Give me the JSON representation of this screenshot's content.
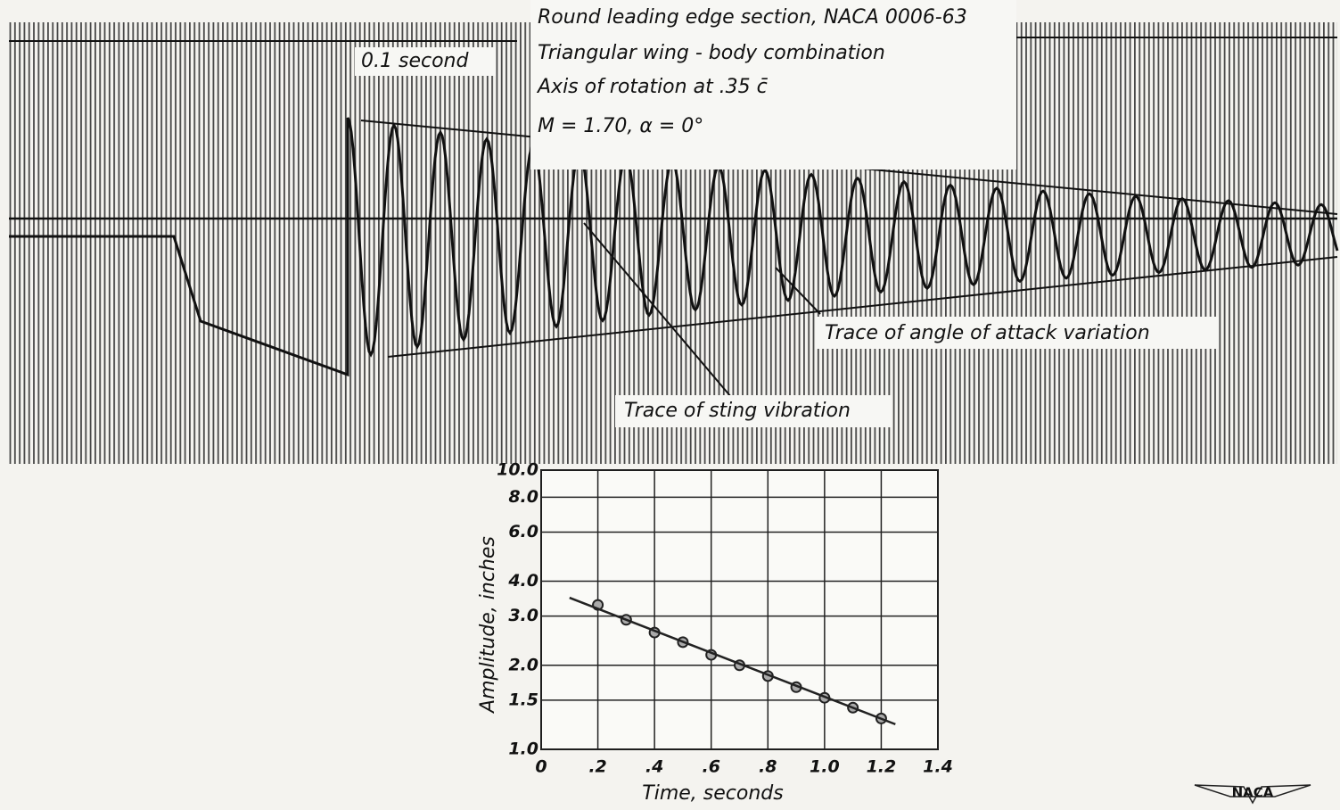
{
  "record": {
    "labels": [
      "Round leading edge section, NACA 0006-63",
      "Triangular wing - body combination",
      "Axis of rotation at .35 c̄",
      "M = 1.70,  α = 0°"
    ],
    "time_mark": "0.1 second",
    "angle_trace": "Trace of angle of attack variation",
    "sting_trace": "Trace of sting vibration"
  },
  "logo": "NACA",
  "chart_data": {
    "type": "scatter",
    "x_label": "Time, seconds",
    "y_label": "Amplitude, inches",
    "xlim": [
      0,
      1.4
    ],
    "ylim": [
      1,
      10
    ],
    "log_y": true,
    "grid": true,
    "xticks": [
      0,
      {
        "value": 0.2,
        "label": ".2"
      },
      {
        "value": 0.4,
        "label": ".4"
      },
      {
        "value": 0.6,
        "label": ".6"
      },
      {
        "value": 0.8,
        "label": ".8"
      },
      {
        "value": 1.0,
        "label": "1.0"
      },
      {
        "value": 1.2,
        "label": "1.2"
      },
      {
        "value": 1.4,
        "label": "1.4"
      }
    ],
    "yticks": [
      {
        "value": 1,
        "label": "1.0"
      },
      {
        "value": 1.5,
        "label": "1.5"
      },
      {
        "value": 2,
        "label": "2.0"
      },
      {
        "value": 3,
        "label": "3.0"
      },
      {
        "value": 4,
        "label": "4.0"
      },
      {
        "value": 6,
        "label": "6.0"
      },
      {
        "value": 8,
        "label": "8.0"
      },
      {
        "value": 10,
        "label": "10.0"
      }
    ],
    "series": [
      {
        "color": "#222222",
        "marker": "circle",
        "x": [
          0.2,
          0.3,
          0.4,
          0.5,
          0.6,
          0.7,
          0.8,
          0.9,
          1.0,
          1.1,
          1.2
        ],
        "values": [
          3.29,
          2.91,
          2.62,
          2.42,
          2.18,
          2.0,
          1.83,
          1.67,
          1.53,
          1.41,
          1.29
        ]
      },
      {
        "color": "#222222",
        "marker": "none",
        "x": [
          0.1,
          1.25
        ],
        "values": [
          3.49,
          1.23
        ]
      }
    ]
  }
}
